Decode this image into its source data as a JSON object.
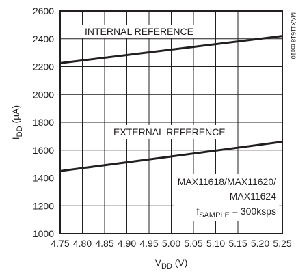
{
  "chart_data": {
    "type": "line",
    "xlabel": {
      "main": "V",
      "sub": "DD",
      "unit": " (V)"
    },
    "ylabel": {
      "main": "I",
      "sub": "DD",
      "unit": " (µA)"
    },
    "xlim": [
      4.75,
      5.25
    ],
    "ylim": [
      1000,
      2600
    ],
    "x_ticks": [
      "4.75",
      "4.80",
      "4.85",
      "4.90",
      "4.95",
      "5.00",
      "5.05",
      "5.10",
      "5.15",
      "5.20",
      "5.25"
    ],
    "y_ticks": [
      "1000",
      "1200",
      "1400",
      "1600",
      "1800",
      "2000",
      "2200",
      "2400",
      "2600"
    ],
    "grid": true,
    "series": [
      {
        "name": "INTERNAL REFERENCE",
        "x": [
          4.75,
          5.25
        ],
        "y": [
          2225,
          2420
        ]
      },
      {
        "name": "EXTERNAL REFERENCE",
        "x": [
          4.75,
          5.25
        ],
        "y": [
          1450,
          1660
        ]
      }
    ],
    "annotation": {
      "line1": "MAX11618/MAX11620/",
      "line2": "MAX11624",
      "line3_main": "f",
      "line3_sub": "SAMPLE",
      "line3_rest": " = 300ksps"
    },
    "figure_code": "MAX11618 toc10",
    "colors": {
      "line": "#231f20",
      "grid": "#231f20",
      "background": "#ffffff"
    }
  }
}
